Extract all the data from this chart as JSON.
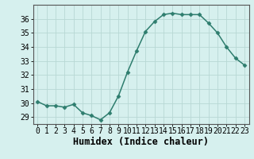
{
  "x": [
    0,
    1,
    2,
    3,
    4,
    5,
    6,
    7,
    8,
    9,
    10,
    11,
    12,
    13,
    14,
    15,
    16,
    17,
    18,
    19,
    20,
    21,
    22,
    23
  ],
  "y": [
    30.1,
    29.8,
    29.8,
    29.7,
    29.9,
    29.3,
    29.1,
    28.8,
    29.3,
    30.5,
    32.2,
    33.7,
    35.1,
    35.8,
    36.3,
    36.4,
    36.3,
    36.3,
    36.3,
    35.7,
    35.0,
    34.0,
    33.2,
    32.7
  ],
  "line_color": "#2e7d6e",
  "marker": "D",
  "marker_size": 2.5,
  "bg_color": "#d6f0ee",
  "grid_color": "#b8d8d4",
  "xlabel": "Humidex (Indice chaleur)",
  "ylim": [
    28.5,
    37.0
  ],
  "xlim": [
    -0.5,
    23.5
  ],
  "yticks": [
    29,
    30,
    31,
    32,
    33,
    34,
    35,
    36
  ],
  "xtick_labels": [
    "0",
    "1",
    "2",
    "3",
    "4",
    "5",
    "6",
    "7",
    "8",
    "9",
    "10",
    "11",
    "12",
    "13",
    "14",
    "15",
    "16",
    "17",
    "18",
    "19",
    "20",
    "21",
    "22",
    "23"
  ],
  "tick_fontsize": 7,
  "xlabel_fontsize": 8.5,
  "spine_color": "#555555",
  "linewidth": 1.1
}
